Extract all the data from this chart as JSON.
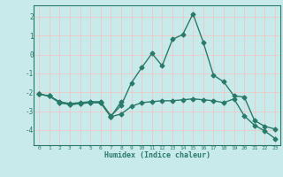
{
  "title": "",
  "xlabel": "Humidex (Indice chaleur)",
  "bg_color": "#c8eaea",
  "grid_color": "#f0c8c8",
  "line_color": "#2a7a6a",
  "xlim": [
    -0.5,
    23.5
  ],
  "ylim": [
    -4.8,
    2.6
  ],
  "yticks": [
    -4,
    -3,
    -2,
    -1,
    0,
    1,
    2
  ],
  "xticks": [
    0,
    1,
    2,
    3,
    4,
    5,
    6,
    7,
    8,
    9,
    10,
    11,
    12,
    13,
    14,
    15,
    16,
    17,
    18,
    19,
    20,
    21,
    22,
    23
  ],
  "line1_x": [
    0,
    1,
    2,
    3,
    4,
    5,
    6,
    7,
    8,
    9,
    10,
    11,
    12,
    13,
    14,
    15,
    16,
    17,
    18,
    19,
    20,
    21,
    22,
    23
  ],
  "line1_y": [
    -2.1,
    -2.2,
    -2.5,
    -2.6,
    -2.55,
    -2.5,
    -2.5,
    -3.25,
    -2.7,
    -1.5,
    -0.7,
    0.05,
    -0.6,
    0.8,
    1.05,
    2.15,
    0.65,
    -1.1,
    -1.45,
    -2.2,
    -2.25,
    -3.5,
    -3.8,
    -3.95
  ],
  "line2_x": [
    0,
    1,
    2,
    3,
    4,
    5,
    6,
    7,
    8,
    9,
    10,
    11,
    12,
    13,
    14,
    15,
    16,
    17,
    18,
    19,
    20,
    21,
    22,
    23
  ],
  "line2_y": [
    -2.1,
    -2.2,
    -2.55,
    -2.65,
    -2.6,
    -2.55,
    -2.55,
    -3.3,
    -3.15,
    -2.75,
    -2.55,
    -2.5,
    -2.45,
    -2.45,
    -2.4,
    -2.35,
    -2.4,
    -2.45,
    -2.55,
    -2.35,
    -3.25,
    -3.75,
    -4.05,
    -4.45
  ],
  "line3_x": [
    0,
    1,
    2,
    3,
    4,
    5,
    6,
    7,
    8
  ],
  "line3_y": [
    -2.1,
    -2.2,
    -2.55,
    -2.65,
    -2.6,
    -2.55,
    -2.55,
    -3.3,
    -2.5
  ]
}
